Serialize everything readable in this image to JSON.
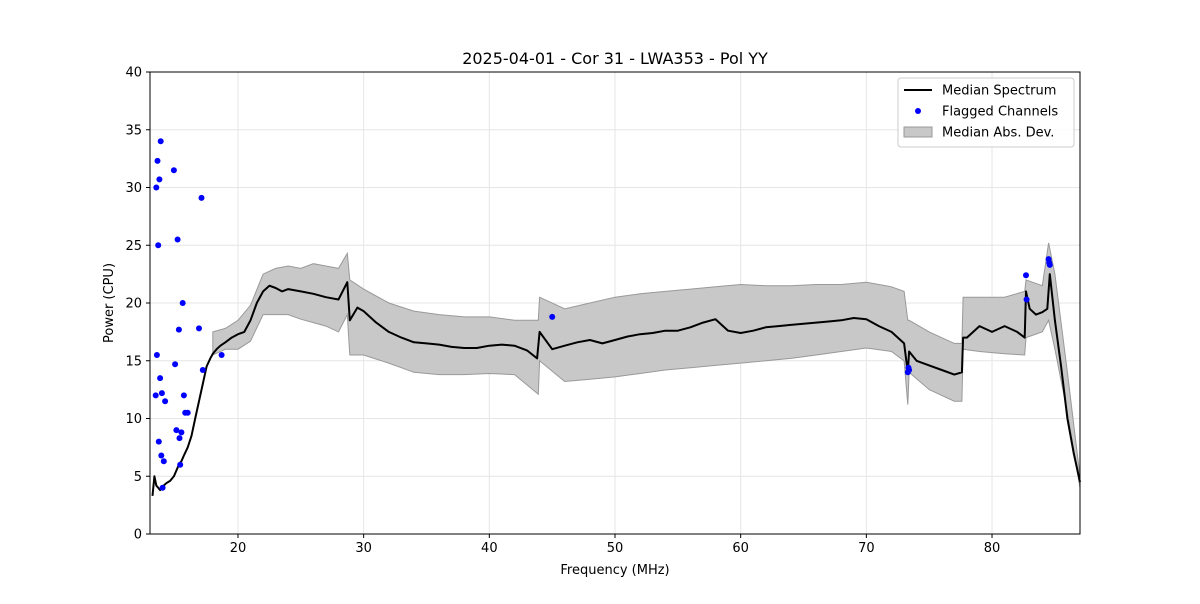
{
  "chart_data": {
    "type": "line",
    "title": "2025-04-01 - Cor 31 - LWA353 - Pol YY",
    "xlabel": "Frequency (MHz)",
    "ylabel": "Power (CPU)",
    "xlim": [
      13.0,
      87.0
    ],
    "ylim": [
      0,
      40
    ],
    "x_ticks": [
      20,
      30,
      40,
      50,
      60,
      70,
      80
    ],
    "y_ticks": [
      0,
      5,
      10,
      15,
      20,
      25,
      30,
      35,
      40
    ],
    "grid": true,
    "legend_position": "top-right",
    "legend": [
      {
        "label": "Median Spectrum",
        "kind": "line",
        "color": "#000000"
      },
      {
        "label": "Flagged Channels",
        "kind": "marker",
        "color": "#0000ff"
      },
      {
        "label": "Median Abs. Dev.",
        "kind": "patch",
        "color": "#c8c8c8"
      }
    ],
    "colors": {
      "median": "#000000",
      "flagged": "#0000ff",
      "band_fill": "#c8c8c8",
      "band_edge": "#999999",
      "grid": "#e6e6e6"
    },
    "series": [
      {
        "name": "Median Spectrum",
        "x": [
          13.2,
          13.35,
          13.5,
          13.65,
          13.8,
          13.95,
          14.1,
          14.3,
          14.6,
          14.9,
          15.1,
          15.3,
          15.5,
          15.7,
          16.0,
          16.3,
          16.6,
          16.9,
          17.2,
          17.5,
          17.8,
          18.0,
          18.3,
          18.6,
          19.0,
          19.5,
          20.0,
          20.5,
          21.0,
          21.5,
          22.0,
          22.5,
          23.0,
          23.5,
          24.0,
          25.0,
          26.0,
          27.0,
          28.0,
          28.7,
          28.9,
          29.5,
          30.0,
          31.0,
          32.0,
          33.0,
          34.0,
          35.0,
          36.0,
          37.0,
          38.0,
          39.0,
          40.0,
          41.0,
          42.0,
          43.0,
          43.8,
          44.0,
          45.0,
          46.0,
          47.0,
          48.0,
          49.0,
          50.0,
          51.0,
          52.0,
          53.0,
          54.0,
          55.0,
          56.0,
          57.0,
          58.0,
          59.0,
          60.0,
          61.0,
          62.0,
          63.0,
          64.0,
          65.0,
          66.0,
          67.0,
          68.0,
          69.0,
          70.0,
          71.0,
          72.0,
          73.0,
          73.3,
          73.4,
          74.0,
          75.0,
          76.0,
          77.0,
          77.6,
          77.7,
          78.0,
          79.0,
          80.0,
          81.0,
          82.0,
          82.6,
          82.7,
          83.0,
          83.5,
          84.0,
          84.4,
          84.6,
          85.0,
          85.5,
          86.0,
          86.5,
          87.0
        ],
        "y": [
          3.3,
          5.0,
          4.2,
          4.0,
          3.8,
          4.0,
          4.2,
          4.4,
          4.6,
          5.0,
          5.5,
          6.0,
          6.3,
          6.8,
          7.5,
          8.5,
          10.0,
          11.5,
          13.0,
          14.5,
          15.2,
          15.6,
          16.0,
          16.3,
          16.6,
          17.0,
          17.3,
          17.5,
          18.5,
          20.0,
          21.0,
          21.5,
          21.3,
          21.0,
          21.2,
          21.0,
          20.8,
          20.5,
          20.3,
          21.8,
          18.5,
          19.6,
          19.3,
          18.3,
          17.5,
          17.0,
          16.6,
          16.5,
          16.4,
          16.2,
          16.1,
          16.1,
          16.3,
          16.4,
          16.3,
          15.9,
          15.2,
          17.5,
          16.0,
          16.3,
          16.6,
          16.8,
          16.5,
          16.8,
          17.1,
          17.3,
          17.4,
          17.6,
          17.6,
          17.9,
          18.3,
          18.6,
          17.6,
          17.4,
          17.6,
          17.9,
          18.0,
          18.1,
          18.2,
          18.3,
          18.4,
          18.5,
          18.7,
          18.6,
          18.0,
          17.5,
          16.5,
          14.0,
          15.8,
          15.0,
          14.6,
          14.2,
          13.8,
          14.0,
          17.0,
          17.0,
          18.0,
          17.5,
          18.0,
          17.5,
          17.0,
          21.0,
          19.5,
          19.0,
          19.2,
          19.5,
          22.5,
          18.5,
          14.5,
          10.0,
          7.0,
          4.5
        ]
      },
      {
        "name": "Median Abs. Dev.",
        "x": [
          18.0,
          19.0,
          20.0,
          21.0,
          22.0,
          23.0,
          24.0,
          25.0,
          26.0,
          27.0,
          28.0,
          28.7,
          28.9,
          30.0,
          32.0,
          34.0,
          36.0,
          38.0,
          40.0,
          42.0,
          43.9,
          44.0,
          46.0,
          48.0,
          50.0,
          52.0,
          54.0,
          56.0,
          58.0,
          60.0,
          62.0,
          64.0,
          66.0,
          68.0,
          70.0,
          72.0,
          73.0,
          73.3,
          73.4,
          75.0,
          77.0,
          77.6,
          77.7,
          79.0,
          81.0,
          82.6,
          82.7,
          84.0,
          84.5,
          85.0,
          86.0,
          87.0
        ],
        "upper": [
          17.5,
          17.8,
          18.5,
          19.8,
          22.5,
          23.0,
          23.2,
          23.0,
          23.4,
          23.2,
          23.0,
          24.3,
          22.0,
          21.2,
          20.0,
          19.3,
          19.0,
          18.8,
          18.8,
          18.5,
          18.5,
          20.5,
          19.5,
          20.0,
          20.5,
          20.8,
          21.0,
          21.2,
          21.4,
          21.6,
          21.5,
          21.5,
          21.6,
          21.6,
          21.8,
          21.4,
          21.0,
          18.5,
          18.5,
          17.5,
          16.5,
          16.5,
          20.5,
          20.5,
          20.5,
          21.0,
          22.0,
          21.5,
          25.2,
          22.5,
          14.0,
          5.0
        ],
        "lower": [
          15.5,
          16.0,
          16.0,
          16.7,
          19.0,
          19.0,
          19.0,
          18.6,
          18.3,
          18.0,
          17.5,
          19.0,
          15.5,
          15.5,
          14.8,
          14.0,
          13.8,
          13.8,
          13.9,
          13.8,
          12.1,
          15.0,
          13.2,
          13.4,
          13.6,
          13.9,
          14.2,
          14.4,
          14.6,
          14.8,
          15.0,
          15.2,
          15.5,
          15.8,
          16.1,
          15.8,
          15.0,
          11.2,
          14.0,
          12.5,
          11.5,
          11.5,
          16.0,
          15.8,
          15.6,
          15.5,
          17.0,
          17.5,
          18.5,
          16.0,
          10.5,
          4.0
        ]
      },
      {
        "name": "Flagged Channels",
        "x": [
          13.45,
          13.5,
          13.55,
          13.6,
          13.65,
          13.7,
          13.75,
          13.8,
          13.85,
          13.9,
          13.95,
          14.0,
          14.1,
          14.2,
          14.9,
          15.0,
          15.1,
          15.2,
          15.3,
          15.35,
          15.4,
          15.5,
          15.6,
          15.7,
          15.8,
          16.0,
          16.9,
          17.1,
          17.2,
          18.7,
          45.0,
          73.3,
          73.35,
          73.4,
          82.7,
          82.75,
          84.5,
          84.55,
          84.6
        ],
        "y": [
          12.0,
          30.0,
          15.5,
          32.3,
          25.0,
          8.0,
          30.7,
          13.5,
          34.0,
          6.8,
          12.2,
          4.0,
          6.3,
          11.5,
          31.5,
          14.7,
          9.0,
          25.5,
          17.7,
          8.3,
          6.0,
          8.8,
          20.0,
          12.0,
          10.5,
          10.5,
          17.8,
          29.1,
          14.2,
          15.5,
          18.8,
          14.0,
          14.4,
          14.2,
          22.4,
          20.3,
          23.8,
          23.5,
          23.3
        ]
      }
    ]
  }
}
